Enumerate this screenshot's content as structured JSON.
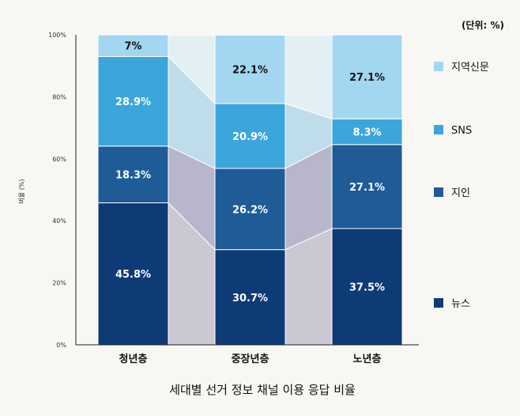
{
  "chart_data": {
    "type": "bar",
    "stacked": true,
    "percent": true,
    "title": "세대별 선거 정보 채널 이용 응답 비율",
    "unit_note": "(단위: %)",
    "ylabel": "비율 (%)",
    "ylim": [
      0,
      100
    ],
    "yticks": [
      "0%",
      "20%",
      "40%",
      "60%",
      "80%",
      "100%"
    ],
    "categories": [
      "청년층",
      "중장년층",
      "노년층"
    ],
    "legend_position": "right",
    "series": [
      {
        "name": "뉴스",
        "color": "#0e3a75",
        "values": [
          45.8,
          30.7,
          37.5
        ],
        "labels": [
          "45.8%",
          "30.7%",
          "37.5%"
        ]
      },
      {
        "name": "지인",
        "color": "#1e5b97",
        "values": [
          18.3,
          26.2,
          27.1
        ],
        "labels": [
          "18.3%",
          "26.2%",
          "27.1%"
        ]
      },
      {
        "name": "SNS",
        "color": "#3aa6dc",
        "values": [
          28.9,
          20.9,
          8.3
        ],
        "labels": [
          "28.9%",
          "20.9%",
          "8.3%"
        ]
      },
      {
        "name": "지역신문",
        "color": "#a3d7f1",
        "values": [
          7,
          22.1,
          27.1
        ],
        "labels": [
          "7%",
          "22.1%",
          "27.1%"
        ]
      }
    ],
    "connector_colors": [
      "#cbc8d3",
      "#b7b6ca",
      "#bfdcea",
      "#e2eff3"
    ],
    "label_colors": {
      "dark_bg": "#ffffff",
      "light_bg": "#111111"
    }
  }
}
